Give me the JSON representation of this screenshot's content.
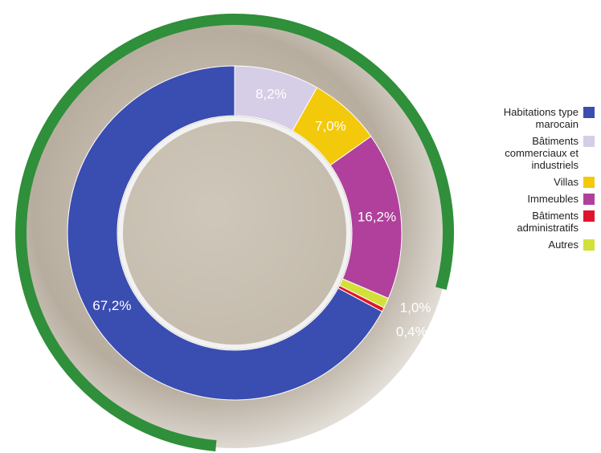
{
  "chart_data": {
    "type": "donut",
    "categories": [
      "Habitations type marocain",
      "Bâtiments commerciaux et industriels",
      "Villas",
      "Immeubles",
      "Bâtiments administratifs",
      "Autres"
    ],
    "values": [
      67.2,
      8.2,
      7.0,
      16.2,
      0.4,
      1.0
    ],
    "value_labels": [
      "67,2%",
      "8,2%",
      "7,0%",
      "16,2%",
      "0,4%",
      "1,0%"
    ],
    "colors": [
      "#3a4db0",
      "#d6cde6",
      "#f3c90c",
      "#b0409c",
      "#e0142c",
      "#d3e03a"
    ],
    "legend": "right"
  }
}
